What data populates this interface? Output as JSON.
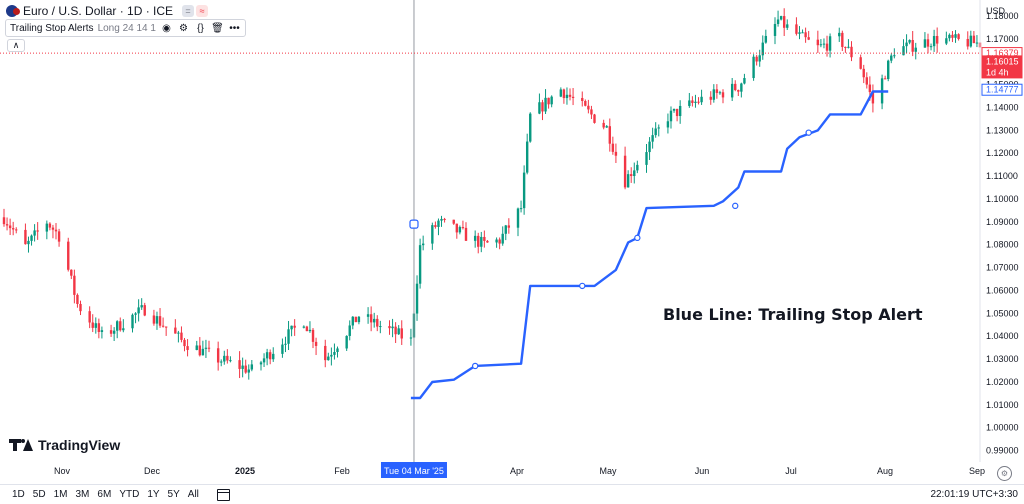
{
  "header": {
    "symbol_title": "Euro / U.S. Dollar · 1D · ICE",
    "badge_gray": "=",
    "badge_red": "≈"
  },
  "indicator": {
    "name": "Trailing Stop Alerts",
    "params": "Long 24 14 1"
  },
  "price_scale": {
    "currency": "USD",
    "ticks": [
      "1.18000",
      "1.17000",
      "1.16000",
      "1.15000",
      "1.14000",
      "1.13000",
      "1.12000",
      "1.11000",
      "1.10000",
      "1.09000",
      "1.08000",
      "1.07000",
      "1.06000",
      "1.05000",
      "1.04000",
      "1.03000",
      "1.02000",
      "1.01000",
      "1.00000",
      "0.99000"
    ],
    "tick_values": [
      1.18,
      1.17,
      1.16,
      1.15,
      1.14,
      1.13,
      1.12,
      1.11,
      1.1,
      1.09,
      1.08,
      1.07,
      1.06,
      1.05,
      1.04,
      1.03,
      1.02,
      1.01,
      1.0,
      0.99
    ]
  },
  "time_scale": {
    "labels": [
      "Nov",
      "Dec",
      "2025",
      "Feb",
      "Apr",
      "May",
      "Jun",
      "Jul",
      "Aug",
      "Sep"
    ],
    "label_x": [
      62,
      152,
      245,
      342,
      517,
      608,
      702,
      791,
      885,
      977
    ],
    "bold_label": "2025",
    "crosshair_label": "Tue 04 Mar '25"
  },
  "price_labels": {
    "crosshair_price": "1.16379",
    "last_price": "1.16015",
    "countdown": "1d 4h",
    "stop_price": "1.14777"
  },
  "annotation": "Blue Line: Trailing Stop Alert",
  "bottom_bar": {
    "ranges": [
      "1D",
      "5D",
      "1M",
      "3M",
      "6M",
      "YTD",
      "1Y",
      "5Y",
      "All"
    ],
    "clock": "22:01:19 UTC+3:30"
  },
  "logo_text": "TradingView",
  "colors": {
    "up": "#089981",
    "down": "#f23645",
    "trailing_stop": "#2962ff",
    "crosshair": "#9598a1",
    "price_line": "#f23645",
    "crosshair_label_bg": "#2962ff"
  },
  "chart_data": {
    "type": "candlestick",
    "symbol": "EURUSD",
    "timeframe": "1D",
    "ylim": [
      0.985,
      1.187
    ],
    "grid": false,
    "x_range": [
      "2024-10-21",
      "2025-09-05"
    ],
    "crosshair_date": "2025-03-04",
    "price_path": [
      [
        "2024-10-21",
        1.092
      ],
      [
        "2024-10-28",
        1.079
      ],
      [
        "2024-11-04",
        1.09
      ],
      [
        "2024-11-08",
        1.084
      ],
      [
        "2024-11-14",
        1.054
      ],
      [
        "2024-11-22",
        1.04
      ],
      [
        "2024-12-06",
        1.052
      ],
      [
        "2024-12-18",
        1.038
      ],
      [
        "2024-12-30",
        1.03
      ],
      [
        "2025-01-10",
        1.025
      ],
      [
        "2025-01-27",
        1.047
      ],
      [
        "2025-02-03",
        1.03
      ],
      [
        "2025-02-14",
        1.049
      ],
      [
        "2025-03-03",
        1.038
      ],
      [
        "2025-03-06",
        1.079
      ],
      [
        "2025-03-12",
        1.09
      ],
      [
        "2025-03-27",
        1.08
      ],
      [
        "2025-04-01",
        1.082
      ],
      [
        "2025-04-08",
        1.096
      ],
      [
        "2025-04-11",
        1.136
      ],
      [
        "2025-04-21",
        1.148
      ],
      [
        "2025-05-06",
        1.131
      ],
      [
        "2025-05-12",
        1.108
      ],
      [
        "2025-05-26",
        1.136
      ],
      [
        "2025-06-05",
        1.143
      ],
      [
        "2025-06-18",
        1.149
      ],
      [
        "2025-07-01",
        1.178
      ],
      [
        "2025-07-08",
        1.171
      ],
      [
        "2025-07-14",
        1.166
      ],
      [
        "2025-07-21",
        1.17
      ],
      [
        "2025-07-28",
        1.158
      ],
      [
        "2025-08-01",
        1.142
      ],
      [
        "2025-08-08",
        1.165
      ],
      [
        "2025-08-22",
        1.17
      ],
      [
        "2025-09-05",
        1.168
      ]
    ],
    "trailing_stop": [
      [
        "2025-03-03",
        1.013
      ],
      [
        "2025-03-06",
        1.013
      ],
      [
        "2025-03-10",
        1.02
      ],
      [
        "2025-03-17",
        1.021
      ],
      [
        "2025-03-24",
        1.027
      ],
      [
        "2025-04-08",
        1.028
      ],
      [
        "2025-04-11",
        1.062
      ],
      [
        "2025-05-02",
        1.062
      ],
      [
        "2025-05-09",
        1.069
      ],
      [
        "2025-05-13",
        1.081
      ],
      [
        "2025-05-16",
        1.083
      ],
      [
        "2025-05-19",
        1.096
      ],
      [
        "2025-06-10",
        1.097
      ],
      [
        "2025-06-13",
        1.099
      ],
      [
        "2025-06-18",
        1.105
      ],
      [
        "2025-06-20",
        1.112
      ],
      [
        "2025-07-02",
        1.112
      ],
      [
        "2025-07-04",
        1.122
      ],
      [
        "2025-07-08",
        1.127
      ],
      [
        "2025-07-14",
        1.13
      ],
      [
        "2025-07-18",
        1.137
      ],
      [
        "2025-07-28",
        1.137
      ],
      [
        "2025-08-01",
        1.147
      ],
      [
        "2025-08-06",
        1.147
      ]
    ],
    "trailing_stop_markers": [
      [
        "2025-03-24",
        1.027
      ],
      [
        "2025-04-28",
        1.062
      ],
      [
        "2025-05-16",
        1.083
      ],
      [
        "2025-06-17",
        1.097
      ],
      [
        "2025-07-11",
        1.129
      ]
    ],
    "crosshair_marker": [
      "2025-03-04",
      1.089
    ],
    "last_price": 1.16015,
    "stop_price": 1.14777,
    "crosshair_price": 1.16379
  }
}
